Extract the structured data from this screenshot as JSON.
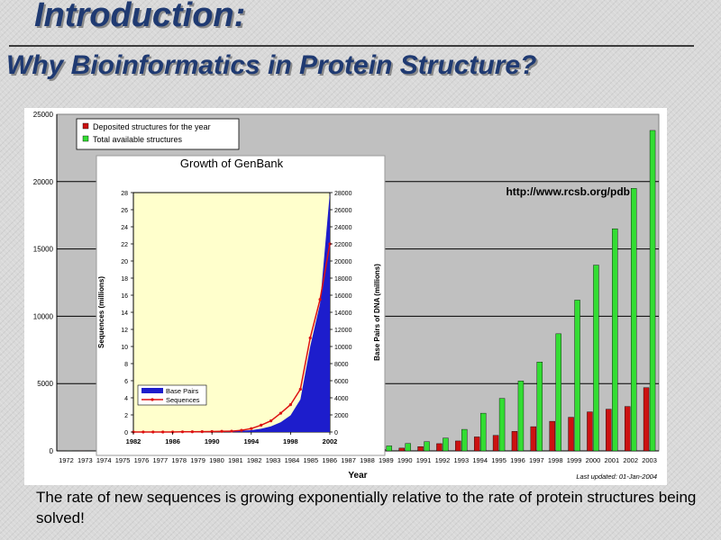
{
  "slide": {
    "title": "Introduction:",
    "subtitle": "Why Bioinformatics in Protein Structure?",
    "url": "http://www.rcsb.org/pdb",
    "caption": "The rate of new sequences is growing exponentially relative to the rate of protein structures being solved!"
  },
  "colors": {
    "deposited": "#cc1111",
    "total": "#33dd33",
    "genbank_area": "#1d1dcc",
    "genbank_line": "#dd1111",
    "inset_plot_bg": "#ffffcc",
    "pdb_plot_bg": "#c0c0c0"
  },
  "chart_data": [
    {
      "type": "bar",
      "xlabel": "Year",
      "ylabel": "",
      "ylim": [
        0,
        25000
      ],
      "yticks": [
        0,
        5000,
        10000,
        15000,
        20000,
        25000
      ],
      "grid": true,
      "legend_position": "top-left",
      "note": "Last updated: 01-Jan-2004",
      "categories": [
        "1972",
        "1973",
        "1974",
        "1975",
        "1976",
        "1977",
        "1978",
        "1979",
        "1980",
        "1981",
        "1982",
        "1983",
        "1984",
        "1985",
        "1986",
        "1987",
        "1988",
        "1989",
        "1990",
        "1991",
        "1992",
        "1993",
        "1994",
        "1995",
        "1996",
        "1997",
        "1998",
        "1999",
        "2000",
        "2001",
        "2002",
        "2003"
      ],
      "series": [
        {
          "name": "Deposited structures for the year",
          "values": [
            1,
            6,
            12,
            20,
            22,
            25,
            14,
            8,
            12,
            10,
            25,
            30,
            30,
            26,
            30,
            31,
            60,
            120,
            210,
            320,
            540,
            740,
            1040,
            1150,
            1450,
            1800,
            2200,
            2500,
            2900,
            3100,
            3300,
            4700
          ]
        },
        {
          "name": "Total available structures",
          "values": [
            12,
            14,
            16,
            22,
            26,
            35,
            45,
            60,
            60,
            60,
            80,
            110,
            140,
            160,
            180,
            200,
            220,
            370,
            550,
            690,
            950,
            1600,
            2800,
            3900,
            5200,
            6600,
            8700,
            11200,
            13800,
            16500,
            19500,
            23800
          ]
        }
      ]
    },
    {
      "type": "area",
      "title": "Growth of GenBank",
      "xlabel": "",
      "ylabel": "Sequences (millions)",
      "y2label": "Base Pairs of DNA (millions)",
      "xlim": [
        1982,
        2002
      ],
      "xticks": [
        1982,
        1986,
        1990,
        1994,
        1998,
        2002
      ],
      "ylim": [
        0,
        28
      ],
      "yticks": [
        0,
        2,
        4,
        6,
        8,
        10,
        12,
        14,
        16,
        18,
        20,
        22,
        24,
        26,
        28
      ],
      "y2lim": [
        0,
        28000
      ],
      "y2ticks": [
        0,
        2000,
        4000,
        6000,
        8000,
        10000,
        12000,
        14000,
        16000,
        18000,
        20000,
        22000,
        24000,
        26000,
        28000
      ],
      "legend_position": "bottom-left",
      "series": [
        {
          "name": "Base Pairs",
          "axis": "right",
          "x": [
            1982,
            1983,
            1984,
            1985,
            1986,
            1987,
            1988,
            1989,
            1990,
            1991,
            1992,
            1993,
            1994,
            1995,
            1996,
            1997,
            1998,
            1999,
            2000,
            2001,
            2002
          ],
          "values": [
            0,
            0,
            2,
            4,
            8,
            12,
            20,
            30,
            40,
            60,
            100,
            160,
            210,
            380,
            650,
            1150,
            1950,
            3800,
            10000,
            15000,
            28000
          ]
        },
        {
          "name": "Sequences",
          "axis": "left",
          "x": [
            1982,
            1983,
            1984,
            1985,
            1986,
            1987,
            1988,
            1989,
            1990,
            1991,
            1992,
            1993,
            1994,
            1995,
            1996,
            1997,
            1998,
            1999,
            2000,
            2001,
            2002
          ],
          "values": [
            0,
            0,
            0,
            0,
            0,
            0.02,
            0.03,
            0.04,
            0.05,
            0.08,
            0.1,
            0.2,
            0.4,
            0.8,
            1.3,
            2.2,
            3.2,
            5,
            11,
            15.5,
            22
          ]
        }
      ]
    }
  ]
}
